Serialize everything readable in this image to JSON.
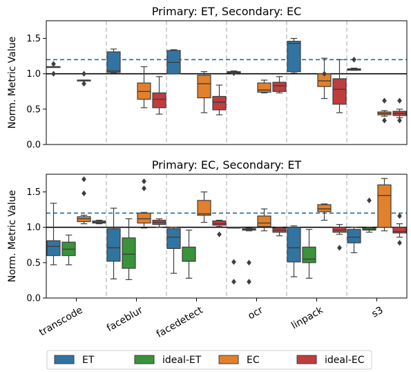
{
  "colors": {
    "ET": "#3274a1",
    "ideal-ET": "#3a923a",
    "EC": "#e1812c",
    "ideal-EC": "#c03d3e",
    "reference": "#3274a1"
  },
  "legend": {
    "placement": "bottom",
    "entries": [
      {
        "name": "ET",
        "color": "#3274a1"
      },
      {
        "name": "ideal-ET",
        "color": "#3a923a"
      },
      {
        "name": "EC",
        "color": "#e1812c"
      },
      {
        "name": "ideal-EC",
        "color": "#c03d3e"
      }
    ]
  },
  "chart_data": [
    {
      "type": "box",
      "title": "Primary: ET, Secondary: EC",
      "ylabel": "Norm. Metric Value",
      "xlabel": "",
      "ylim": [
        0,
        1.75
      ],
      "yticks": [
        "0.0",
        "0.5",
        "1.0",
        "1.5"
      ],
      "reference_lines": [
        {
          "y": 1.0,
          "style": "solid",
          "color": "#000000"
        },
        {
          "y": 1.2,
          "style": "dashed",
          "color": "#3274a1"
        }
      ],
      "categories": [
        "transcode",
        "faceblur",
        "facedetect",
        "ocr",
        "linpack",
        "s3"
      ],
      "groups": [
        {
          "category": "transcode",
          "boxes": [
            {
              "series": "ET",
              "q1": 1.1,
              "median": 1.1,
              "q3": 1.1,
              "whisker_low": 1.1,
              "whisker_high": 1.1,
              "outliers": [
                1.0,
                1.14
              ]
            },
            {
              "series": "EC",
              "q1": 0.91,
              "median": 0.91,
              "q3": 0.91,
              "whisker_low": 0.91,
              "whisker_high": 0.91,
              "outliers": [
                0.86,
                1.0
              ]
            }
          ]
        },
        {
          "category": "faceblur",
          "boxes": [
            {
              "series": "ET",
              "q1": 1.02,
              "median": 1.04,
              "q3": 1.31,
              "whisker_low": 1.01,
              "whisker_high": 1.35,
              "outliers": []
            },
            {
              "series": "EC",
              "q1": 0.64,
              "median": 0.75,
              "q3": 0.87,
              "whisker_low": 0.52,
              "whisker_high": 1.1,
              "outliers": []
            },
            {
              "series": "ideal-EC",
              "q1": 0.52,
              "median": 0.64,
              "q3": 0.73,
              "whisker_low": 0.43,
              "whisker_high": 0.96,
              "outliers": []
            }
          ]
        },
        {
          "category": "facedetect",
          "boxes": [
            {
              "series": "ET",
              "q1": 1.0,
              "median": 1.16,
              "q3": 1.33,
              "whisker_low": 1.0,
              "whisker_high": 1.34,
              "outliers": []
            },
            {
              "series": "EC",
              "q1": 0.66,
              "median": 0.86,
              "q3": 0.98,
              "whisker_low": 0.45,
              "whisker_high": 1.03,
              "outliers": []
            },
            {
              "series": "ideal-EC",
              "q1": 0.49,
              "median": 0.6,
              "q3": 0.68,
              "whisker_low": 0.42,
              "whisker_high": 0.84,
              "outliers": []
            }
          ]
        },
        {
          "category": "ocr",
          "boxes": [
            {
              "series": "ET",
              "q1": 1.01,
              "median": 1.02,
              "q3": 1.03,
              "whisker_low": 1.0,
              "whisker_high": 1.04,
              "outliers": [
                1.01
              ]
            },
            {
              "series": "EC",
              "q1": 0.74,
              "median": 0.77,
              "q3": 0.87,
              "whisker_low": 0.73,
              "whisker_high": 0.91,
              "outliers": []
            },
            {
              "series": "ideal-EC",
              "q1": 0.75,
              "median": 0.83,
              "q3": 0.88,
              "whisker_low": 0.73,
              "whisker_high": 0.96,
              "outliers": []
            }
          ]
        },
        {
          "category": "linpack",
          "boxes": [
            {
              "series": "ET",
              "q1": 1.03,
              "median": 1.43,
              "q3": 1.46,
              "whisker_low": 1.01,
              "whisker_high": 1.5,
              "outliers": []
            },
            {
              "series": "EC",
              "q1": 0.82,
              "median": 0.9,
              "q3": 1.0,
              "whisker_low": 0.65,
              "whisker_high": 1.22,
              "outliers": [
                1.0
              ]
            },
            {
              "series": "ideal-EC",
              "q1": 0.57,
              "median": 0.78,
              "q3": 0.93,
              "whisker_low": 0.45,
              "whisker_high": 1.2,
              "outliers": []
            }
          ]
        },
        {
          "category": "s3",
          "boxes": [
            {
              "series": "ET",
              "q1": 1.05,
              "median": 1.06,
              "q3": 1.07,
              "whisker_low": 1.05,
              "whisker_high": 1.08,
              "outliers": [
                1.2
              ]
            },
            {
              "series": "EC",
              "q1": 0.42,
              "median": 0.44,
              "q3": 0.46,
              "whisker_low": 0.4,
              "whisker_high": 0.48,
              "outliers": [
                0.34,
                0.62
              ]
            },
            {
              "series": "ideal-EC",
              "q1": 0.41,
              "median": 0.44,
              "q3": 0.47,
              "whisker_low": 0.38,
              "whisker_high": 0.5,
              "outliers": [
                0.34,
                0.62
              ]
            }
          ]
        }
      ]
    },
    {
      "type": "box",
      "title": "Primary: EC, Secondary: ET",
      "ylabel": "Norm. Metric Value",
      "xlabel": "",
      "ylim": [
        0,
        1.75
      ],
      "yticks": [
        "0.0",
        "0.5",
        "1.0",
        "1.5"
      ],
      "reference_lines": [
        {
          "y": 1.0,
          "style": "solid",
          "color": "#000000"
        },
        {
          "y": 1.2,
          "style": "dashed",
          "color": "#3274a1"
        }
      ],
      "categories": [
        "transcode",
        "faceblur",
        "facedetect",
        "ocr",
        "linpack",
        "s3"
      ],
      "groups": [
        {
          "category": "transcode",
          "boxes": [
            {
              "series": "ET",
              "q1": 0.6,
              "median": 0.73,
              "q3": 0.81,
              "whisker_low": 0.47,
              "whisker_high": 1.34,
              "outliers": []
            },
            {
              "series": "ideal-ET",
              "q1": 0.6,
              "median": 0.69,
              "q3": 0.79,
              "whisker_low": 0.47,
              "whisker_high": 0.89,
              "outliers": []
            },
            {
              "series": "EC",
              "q1": 1.08,
              "median": 1.12,
              "q3": 1.15,
              "whisker_low": 1.05,
              "whisker_high": 1.17,
              "outliers": [
                1.48,
                1.68
              ]
            },
            {
              "series": "ideal-EC",
              "q1": 1.06,
              "median": 1.07,
              "q3": 1.09,
              "whisker_low": 1.05,
              "whisker_high": 1.1,
              "outliers": []
            }
          ]
        },
        {
          "category": "faceblur",
          "boxes": [
            {
              "series": "ET",
              "q1": 0.52,
              "median": 0.71,
              "q3": 0.98,
              "whisker_low": 0.27,
              "whisker_high": 1.27,
              "outliers": []
            },
            {
              "series": "ideal-ET",
              "q1": 0.42,
              "median": 0.62,
              "q3": 0.85,
              "whisker_low": 0.26,
              "whisker_high": 1.12,
              "outliers": []
            },
            {
              "series": "EC",
              "q1": 1.06,
              "median": 1.12,
              "q3": 1.2,
              "whisker_low": 0.99,
              "whisker_high": 1.21,
              "outliers": [
                1.55,
                1.65
              ]
            },
            {
              "series": "ideal-EC",
              "q1": 1.04,
              "median": 1.07,
              "q3": 1.1,
              "whisker_low": 1.0,
              "whisker_high": 1.12,
              "outliers": []
            }
          ]
        },
        {
          "category": "facedetect",
          "boxes": [
            {
              "series": "ET",
              "q1": 0.7,
              "median": 0.86,
              "q3": 0.98,
              "whisker_low": 0.35,
              "whisker_high": 1.0,
              "outliers": []
            },
            {
              "series": "ideal-ET",
              "q1": 0.52,
              "median": 0.52,
              "q3": 0.72,
              "whisker_low": 0.28,
              "whisker_high": 0.96,
              "outliers": []
            },
            {
              "series": "EC",
              "q1": 1.17,
              "median": 1.19,
              "q3": 1.38,
              "whisker_low": 1.07,
              "whisker_high": 1.5,
              "outliers": []
            },
            {
              "series": "ideal-EC",
              "q1": 1.03,
              "median": 1.05,
              "q3": 1.09,
              "whisker_low": 1.01,
              "whisker_high": 1.1,
              "outliers": [
                0.9
              ]
            }
          ]
        },
        {
          "category": "ocr",
          "boxes": [
            {
              "series": "ET",
              "q1": 0.99,
              "median": 1.0,
              "q3": 1.0,
              "whisker_low": 0.99,
              "whisker_high": 1.0,
              "outliers": [
                0.23,
                0.51
              ]
            },
            {
              "series": "ideal-ET",
              "q1": 0.96,
              "median": 0.97,
              "q3": 0.98,
              "whisker_low": 0.95,
              "whisker_high": 0.99,
              "outliers": [
                0.23,
                0.5
              ]
            },
            {
              "series": "EC",
              "q1": 1.01,
              "median": 1.06,
              "q3": 1.16,
              "whisker_low": 0.95,
              "whisker_high": 1.26,
              "outliers": []
            },
            {
              "series": "ideal-EC",
              "q1": 0.93,
              "median": 0.96,
              "q3": 0.99,
              "whisker_low": 0.88,
              "whisker_high": 1.0,
              "outliers": []
            }
          ]
        },
        {
          "category": "linpack",
          "boxes": [
            {
              "series": "ET",
              "q1": 0.51,
              "median": 0.71,
              "q3": 1.0,
              "whisker_low": 0.3,
              "whisker_high": 1.02,
              "outliers": []
            },
            {
              "series": "ideal-ET",
              "q1": 0.5,
              "median": 0.55,
              "q3": 0.72,
              "whisker_low": 0.28,
              "whisker_high": 0.97,
              "outliers": []
            },
            {
              "series": "EC",
              "q1": 1.22,
              "median": 1.26,
              "q3": 1.32,
              "whisker_low": 1.1,
              "whisker_high": 1.33,
              "outliers": []
            },
            {
              "series": "ideal-EC",
              "q1": 0.93,
              "median": 0.96,
              "q3": 1.0,
              "whisker_low": 0.9,
              "whisker_high": 1.04,
              "outliers": [
                0.71
              ]
            }
          ]
        },
        {
          "category": "s3",
          "boxes": [
            {
              "series": "ET",
              "q1": 0.78,
              "median": 0.86,
              "q3": 0.97,
              "whisker_low": 0.64,
              "whisker_high": 1.0,
              "outliers": []
            },
            {
              "series": "ideal-ET",
              "q1": 0.96,
              "median": 0.97,
              "q3": 0.99,
              "whisker_low": 0.93,
              "whisker_high": 1.0,
              "outliers": [
                1.38
              ]
            },
            {
              "series": "EC",
              "q1": 1.0,
              "median": 1.45,
              "q3": 1.6,
              "whisker_low": 0.95,
              "whisker_high": 1.69,
              "outliers": []
            },
            {
              "series": "ideal-EC",
              "q1": 0.92,
              "median": 0.94,
              "q3": 1.0,
              "whisker_low": 0.86,
              "whisker_high": 1.05,
              "outliers": [
                0.78,
                1.16
              ]
            }
          ]
        }
      ]
    }
  ]
}
